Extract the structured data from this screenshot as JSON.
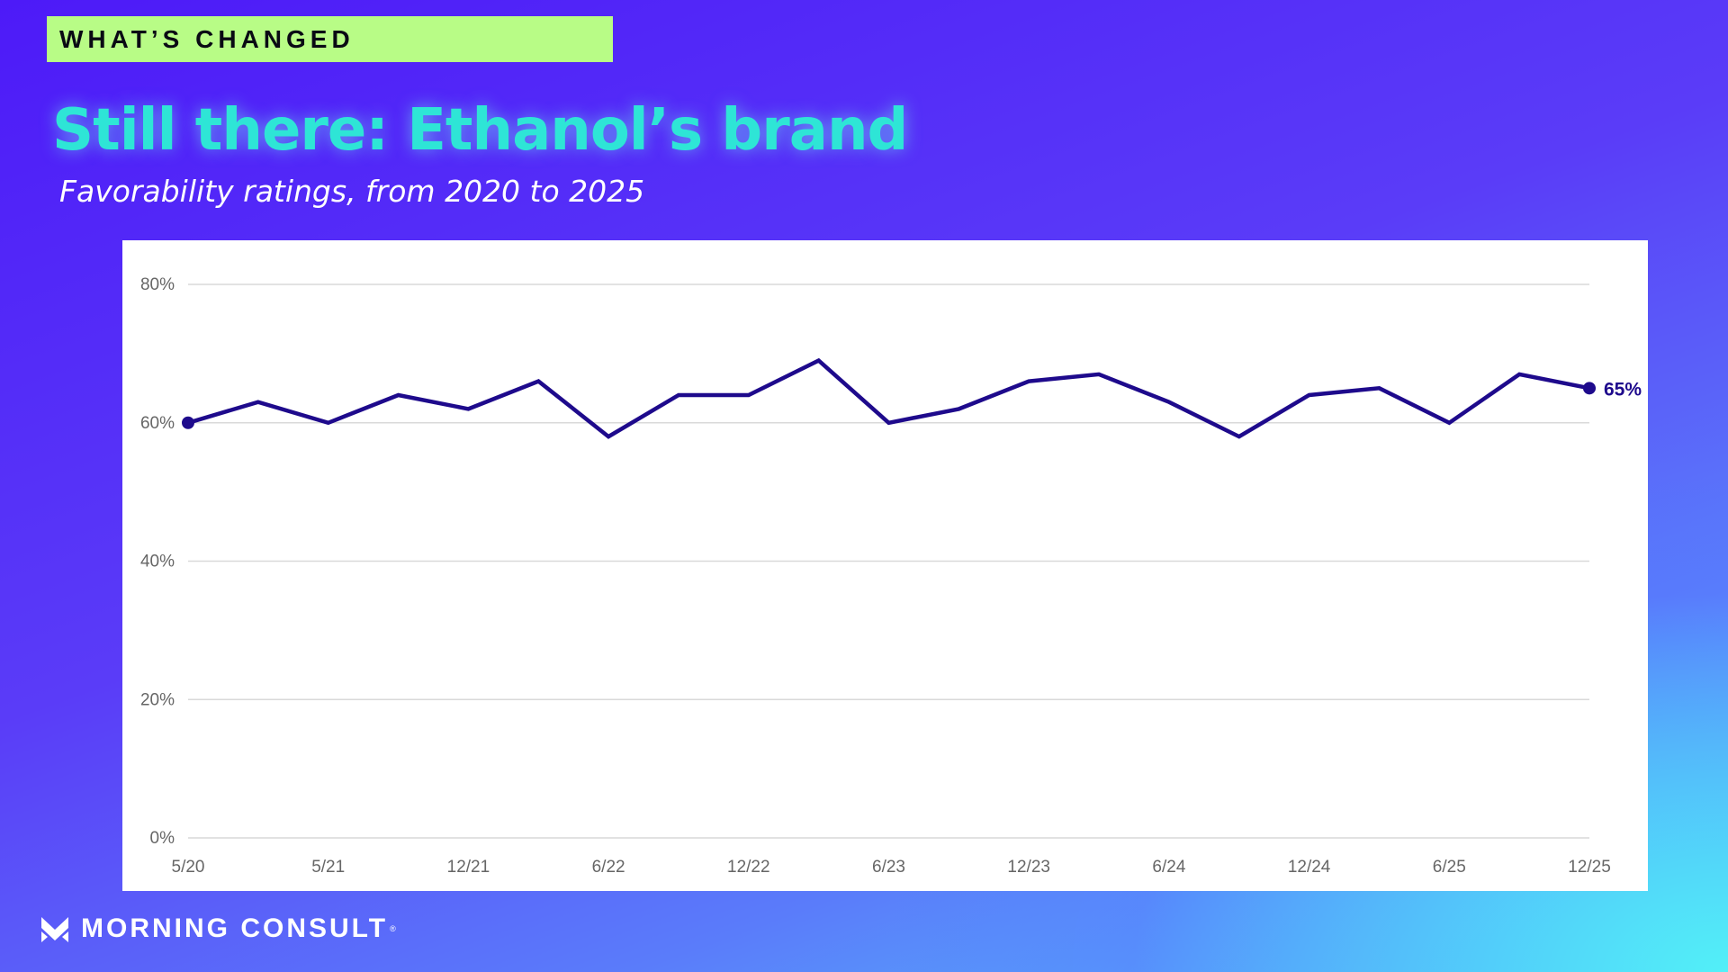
{
  "header": {
    "tag": "WHAT’S CHANGED",
    "title": "Still there: Ethanol’s brand",
    "subtitle": "Favorability ratings, from 2020 to 2025"
  },
  "footer": {
    "brand": "MORNING CONSULT",
    "registered_mark": "®",
    "logo_icon": "morning-consult-logo-icon"
  },
  "colors": {
    "background_top": "#4d1af8",
    "background_bottom_right": "#52f0f8",
    "tag_background": "#b8fc86",
    "title": "#2ee5d6",
    "line": "#1e0a8c"
  },
  "chart_data": {
    "type": "line",
    "title": "Still there: Ethanol’s brand",
    "subtitle": "Favorability ratings, from 2020 to 2025",
    "xlabel": "",
    "ylabel": "",
    "x_tick_labels": [
      "5/20",
      "5/21",
      "12/21",
      "6/22",
      "12/22",
      "6/23",
      "12/23",
      "6/24",
      "12/24",
      "6/25",
      "12/25"
    ],
    "y_tick_labels": [
      "0%",
      "20%",
      "40%",
      "60%",
      "80%"
    ],
    "y_ticks": [
      0,
      20,
      40,
      60,
      80
    ],
    "ylim": [
      0,
      80
    ],
    "grid": true,
    "series": [
      {
        "values": [
          60,
          63,
          60,
          64,
          62,
          66,
          58,
          64,
          64,
          69,
          60,
          62,
          66,
          67,
          63,
          58,
          64,
          65,
          60,
          67,
          65
        ]
      }
    ],
    "end_label": "65%"
  }
}
